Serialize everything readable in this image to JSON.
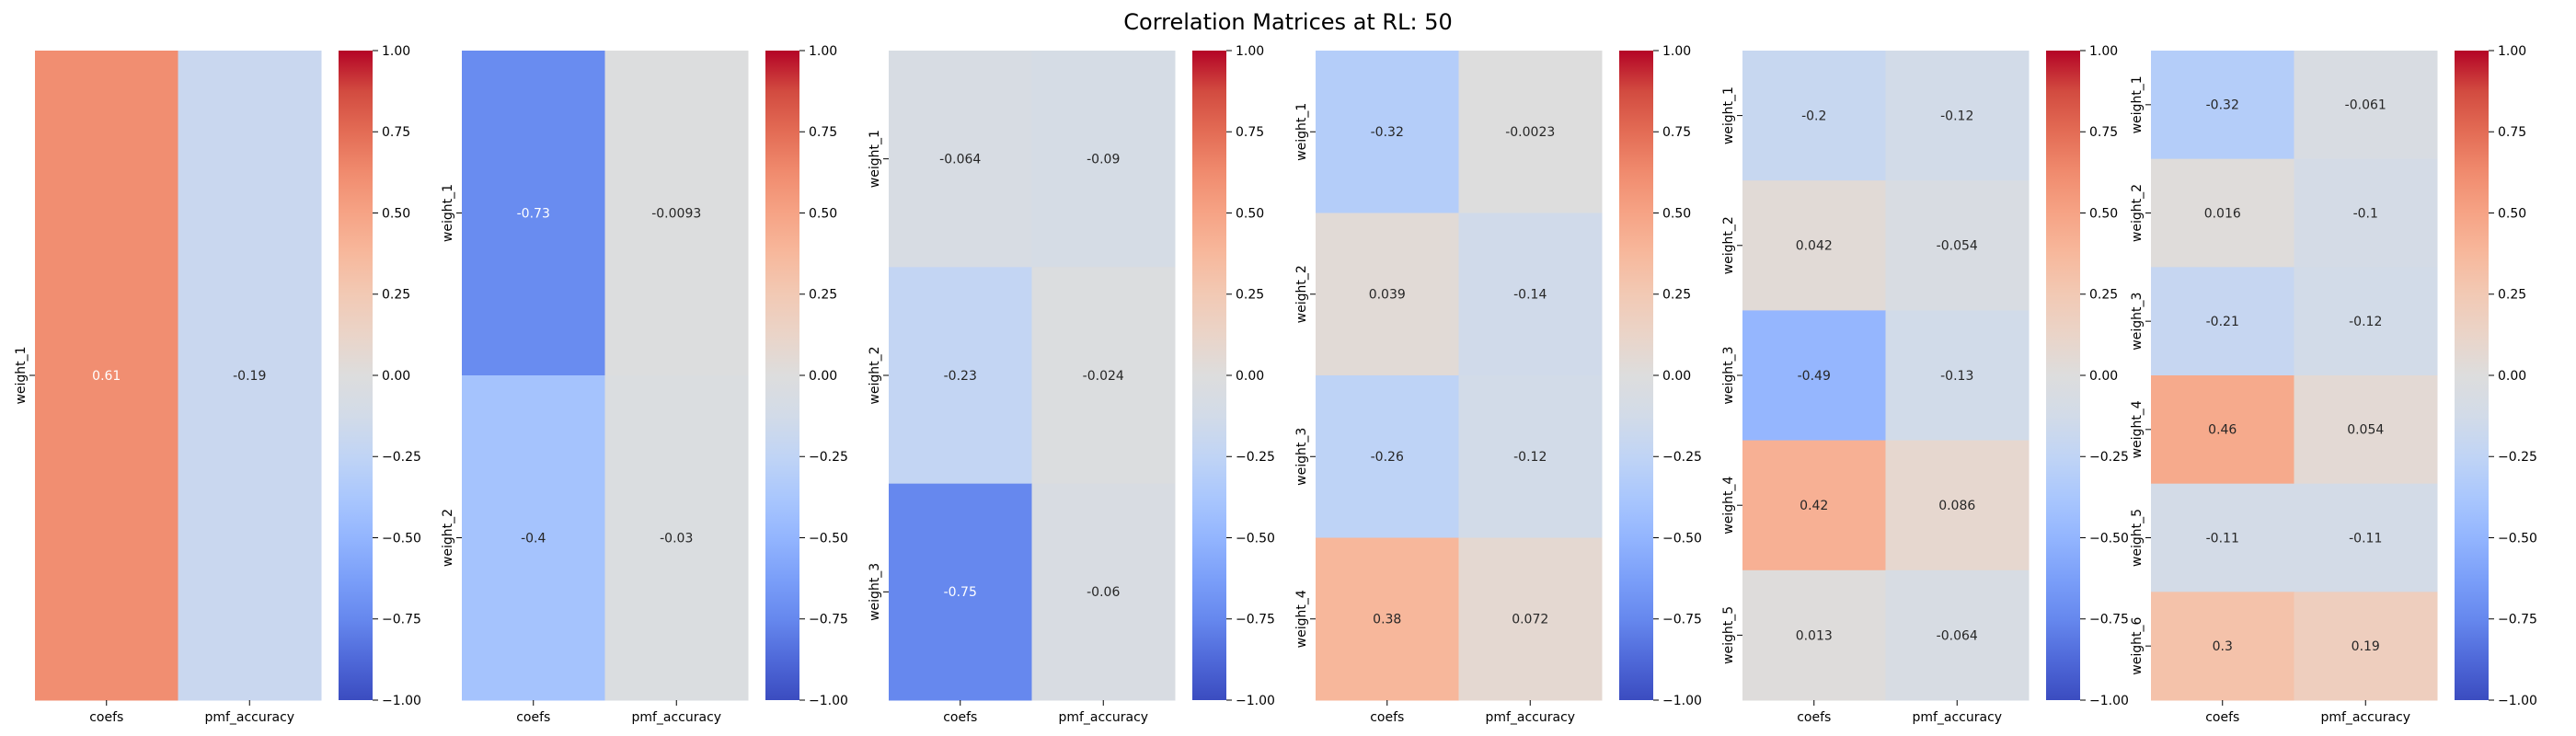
{
  "figure": {
    "title": "Correlation Matrices at RL: 50"
  },
  "colorbar": {
    "ticks": [
      1.0,
      0.75,
      0.5,
      0.25,
      0.0,
      -0.25,
      -0.5,
      -0.75,
      -1.0
    ],
    "tick_labels": [
      "1.00",
      "0.75",
      "0.50",
      "0.25",
      "0.00",
      "−0.25",
      "−0.50",
      "−0.75",
      "−1.00"
    ],
    "cmap": "coolwarm",
    "colors": [
      "#3b4cc0",
      "#4f69d9",
      "#6688ee",
      "#7b9ff9",
      "#93b5fe",
      "#aac7fd",
      "#c0d4f5",
      "#d2dbe8",
      "#dddddd",
      "#ead4c8",
      "#f2c9b4",
      "#f7b89c",
      "#f6a385",
      "#f08b6e",
      "#e36c55",
      "#d24b40",
      "#b40426"
    ]
  },
  "chart_data": [
    {
      "type": "heatmap",
      "xlabel": "",
      "ylabel": "",
      "x_labels": [
        "coefs",
        "pmf_accuracy"
      ],
      "y_labels": [
        "weight_1"
      ],
      "values": [
        [
          0.61,
          -0.19
        ]
      ],
      "value_labels": [
        [
          "0.61",
          "-0.19"
        ]
      ],
      "vmin": -1,
      "vmax": 1
    },
    {
      "type": "heatmap",
      "xlabel": "",
      "ylabel": "",
      "x_labels": [
        "coefs",
        "pmf_accuracy"
      ],
      "y_labels": [
        "weight_1",
        "weight_2"
      ],
      "values": [
        [
          -0.73,
          -0.0093
        ],
        [
          -0.4,
          -0.03
        ]
      ],
      "value_labels": [
        [
          "-0.73",
          "-0.0093"
        ],
        [
          "-0.4",
          "-0.03"
        ]
      ],
      "vmin": -1,
      "vmax": 1
    },
    {
      "type": "heatmap",
      "xlabel": "",
      "ylabel": "",
      "x_labels": [
        "coefs",
        "pmf_accuracy"
      ],
      "y_labels": [
        "weight_1",
        "weight_2",
        "weight_3"
      ],
      "values": [
        [
          -0.064,
          -0.09
        ],
        [
          -0.23,
          -0.024
        ],
        [
          -0.75,
          -0.06
        ]
      ],
      "value_labels": [
        [
          "-0.064",
          "-0.09"
        ],
        [
          "-0.23",
          "-0.024"
        ],
        [
          "-0.75",
          "-0.06"
        ]
      ],
      "vmin": -1,
      "vmax": 1
    },
    {
      "type": "heatmap",
      "xlabel": "",
      "ylabel": "",
      "x_labels": [
        "coefs",
        "pmf_accuracy"
      ],
      "y_labels": [
        "weight_1",
        "weight_2",
        "weight_3",
        "weight_4"
      ],
      "values": [
        [
          -0.32,
          -0.0023
        ],
        [
          0.039,
          -0.14
        ],
        [
          -0.26,
          -0.12
        ],
        [
          0.38,
          0.072
        ]
      ],
      "value_labels": [
        [
          "-0.32",
          "-0.0023"
        ],
        [
          "0.039",
          "-0.14"
        ],
        [
          "-0.26",
          "-0.12"
        ],
        [
          "0.38",
          "0.072"
        ]
      ],
      "vmin": -1,
      "vmax": 1
    },
    {
      "type": "heatmap",
      "xlabel": "",
      "ylabel": "",
      "x_labels": [
        "coefs",
        "pmf_accuracy"
      ],
      "y_labels": [
        "weight_1",
        "weight_2",
        "weight_3",
        "weight_4",
        "weight_5"
      ],
      "values": [
        [
          -0.2,
          -0.12
        ],
        [
          0.042,
          -0.054
        ],
        [
          -0.49,
          -0.13
        ],
        [
          0.42,
          0.086
        ],
        [
          0.013,
          -0.064
        ]
      ],
      "value_labels": [
        [
          "-0.2",
          "-0.12"
        ],
        [
          "0.042",
          "-0.054"
        ],
        [
          "-0.49",
          "-0.13"
        ],
        [
          "0.42",
          "0.086"
        ],
        [
          "0.013",
          "-0.064"
        ]
      ],
      "vmin": -1,
      "vmax": 1
    },
    {
      "type": "heatmap",
      "xlabel": "",
      "ylabel": "",
      "x_labels": [
        "coefs",
        "pmf_accuracy"
      ],
      "y_labels": [
        "weight_1",
        "weight_2",
        "weight_3",
        "weight_4",
        "weight_5",
        "weight_6"
      ],
      "values": [
        [
          -0.32,
          -0.061
        ],
        [
          0.016,
          -0.1
        ],
        [
          -0.21,
          -0.12
        ],
        [
          0.46,
          0.054
        ],
        [
          -0.11,
          -0.11
        ],
        [
          0.3,
          0.19
        ]
      ],
      "value_labels": [
        [
          "-0.32",
          "-0.061"
        ],
        [
          "0.016",
          "-0.1"
        ],
        [
          "-0.21",
          "-0.12"
        ],
        [
          "0.46",
          "0.054"
        ],
        [
          "-0.11",
          "-0.11"
        ],
        [
          "0.3",
          "0.19"
        ]
      ],
      "vmin": -1,
      "vmax": 1
    }
  ]
}
